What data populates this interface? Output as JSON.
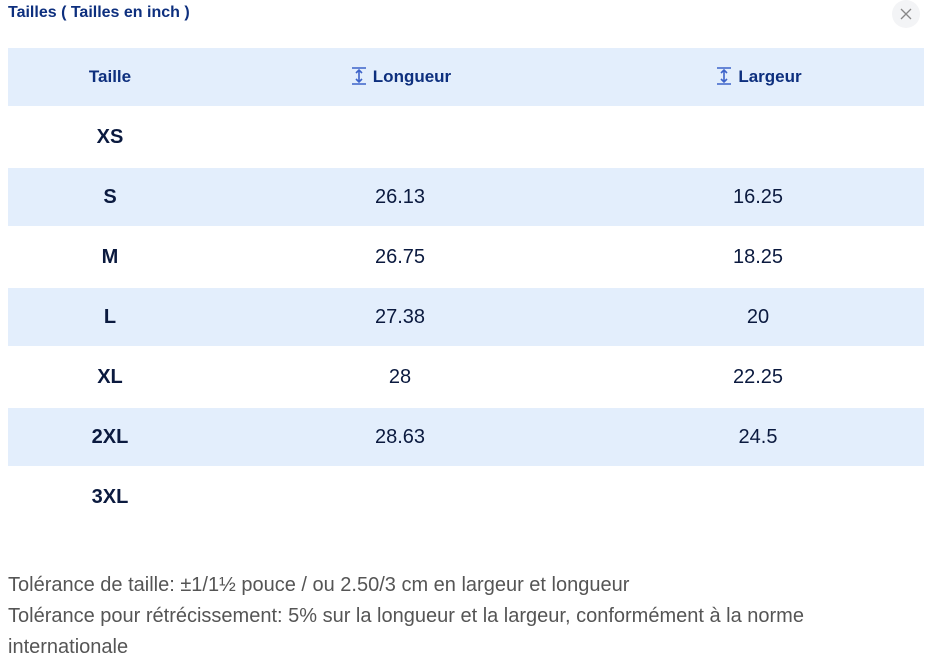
{
  "header": {
    "title": "Tailles ( Tailles en inch )"
  },
  "table": {
    "columns": [
      "Taille",
      "Longueur",
      "Largeur"
    ],
    "rows": [
      [
        "XS",
        null,
        null
      ],
      [
        "S",
        26.13,
        16.25
      ],
      [
        "M",
        26.75,
        18.25
      ],
      [
        "L",
        27.38,
        20
      ],
      [
        "XL",
        28,
        22.25
      ],
      [
        "2XL",
        28.63,
        24.5
      ],
      [
        "3XL",
        null,
        null
      ]
    ]
  },
  "notes": [
    "Tolérance de taille: ±1/1½ pouce / ou 2.50/3 cm en largeur et longueur",
    "Tolérance pour rétrécissement: 5% sur la longueur et la largeur, conformément à la norme internationale"
  ]
}
